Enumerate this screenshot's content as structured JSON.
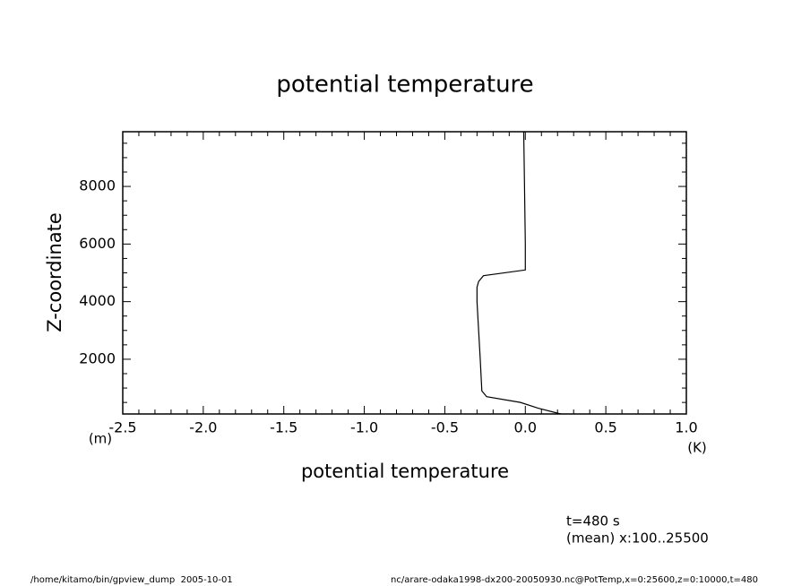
{
  "chart_data": {
    "type": "line",
    "title": "potential temperature",
    "x_label": "potential temperature",
    "y_label": "Z-coordinate",
    "x_unit": "(K)",
    "y_unit": "(m)",
    "annotations": [
      "t=480 s",
      "(mean) x:100..25500"
    ],
    "footer_left": "/home/kitamo/bin/gpview_dump  2005-10-01",
    "footer_right": "nc/arare-odaka1998-dx200-20050930.nc@PotTemp,x=0:25600,z=0:10000,t=480",
    "z": [
      100,
      300,
      500,
      700,
      900,
      2000,
      3000,
      4000,
      4500,
      4700,
      4900,
      5100,
      6000,
      8000,
      9900
    ],
    "series": [
      {
        "name": "potential temperature",
        "color": "#000000",
        "values": [
          0.22,
          0.08,
          -0.03,
          -0.24,
          -0.27,
          -0.28,
          -0.29,
          -0.3,
          -0.3,
          -0.29,
          -0.26,
          0.0,
          0.0,
          -0.005,
          -0.01
        ]
      }
    ],
    "xlim": [
      -2.5,
      1.0
    ],
    "ylim": [
      100,
      9900
    ],
    "xticks": [
      -2.5,
      {
        "value": -2,
        "label": "-2.0"
      },
      -1.5,
      {
        "value": -1,
        "label": "-1.0"
      },
      -0.5,
      {
        "value": 0,
        "label": "0.0"
      },
      0.5,
      {
        "value": 1,
        "label": "1.0"
      }
    ],
    "yticks": [
      2000,
      4000,
      6000,
      8000
    ],
    "xticks_minor": [
      -2.4,
      -2.3,
      -2.2,
      -2.1,
      -1.9,
      -1.8,
      -1.7,
      -1.6,
      -1.4,
      -1.3,
      -1.2,
      -1.1,
      -0.9,
      -0.8,
      -0.7,
      -0.6,
      -0.4,
      -0.3,
      -0.2,
      -0.1,
      0.1,
      0.2,
      0.3,
      0.4,
      0.6,
      0.7,
      0.8,
      0.9
    ],
    "yticks_minor": [
      500,
      1000,
      1500,
      2500,
      3000,
      3500,
      4500,
      5000,
      5500,
      6500,
      7000,
      7500,
      8500,
      9000,
      9500
    ],
    "grid": false
  }
}
